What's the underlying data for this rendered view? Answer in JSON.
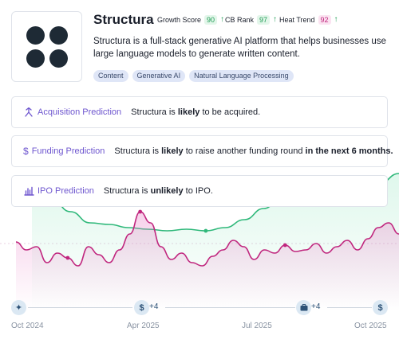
{
  "company": {
    "name": "Structura",
    "description": "Structura is a full-stack generative AI platform that helps businesses use large language models to generate written content.",
    "tags": [
      "Content",
      "Generative AI",
      "Natural Language Processing"
    ]
  },
  "metrics": [
    {
      "label": "Growth Score",
      "value": "90",
      "trend_icon": "arrow-up-icon",
      "color": "#1f9d55",
      "bg": "#e3f6ea"
    },
    {
      "label": "CB Rank",
      "value": "97",
      "trend_icon": "arrow-up-icon",
      "color": "#1f9d55",
      "bg": "#e3f6ea"
    },
    {
      "label": "Heat Trend",
      "value": "92",
      "trend_icon": "arrow-up-icon",
      "color": "#c0267e",
      "bg": "#fbe3f1"
    }
  ],
  "predictions": {
    "acquisition": {
      "title": "Acquisition Prediction",
      "pre": "Structura is ",
      "bold": "likely",
      "post": " to be acquired.",
      "icon": "merge-arrow-icon"
    },
    "funding": {
      "title": "Funding Prediction",
      "pre": "Structura is ",
      "bold": "likely",
      "mid": " to raise another funding round ",
      "bold2": "in the next 6 months.",
      "icon": "dollar-icon"
    },
    "ipo": {
      "title": "IPO Prediction",
      "pre": "Structura is ",
      "bold": "unlikely",
      "post": " to IPO.",
      "icon": "bar-chart-icon"
    }
  },
  "timeline": {
    "labels": [
      "Oct 2024",
      "Apr 2025",
      "Jul 2025",
      "Oct 2025"
    ],
    "events": [
      {
        "icon": "sparkle-icon"
      },
      {
        "icon": "dollar-icon",
        "count": "+4"
      },
      {
        "icon": "briefcase-icon",
        "count": "+4"
      },
      {
        "icon": "dollar-icon"
      }
    ]
  },
  "colors": {
    "accent": "#6e56cf",
    "heat_line": "#c0267e",
    "growth_line": "#2fb87a"
  },
  "chart_data": {
    "type": "line",
    "series": [
      {
        "values": [
          43,
          38,
          40,
          30,
          36,
          33,
          28,
          40,
          35,
          30,
          38,
          48,
          62,
          55,
          40,
          32,
          36,
          30,
          28,
          34,
          38,
          44,
          40,
          32,
          38,
          36,
          41,
          37,
          38,
          42,
          36,
          40,
          44,
          38,
          45,
          52,
          55,
          48
        ]
      },
      {
        "values": [
          66,
          70,
          62,
          55,
          54,
          52,
          51,
          50,
          51,
          50,
          52,
          57,
          64,
          72,
          80,
          84,
          80,
          76,
          80,
          86
        ]
      }
    ]
  }
}
